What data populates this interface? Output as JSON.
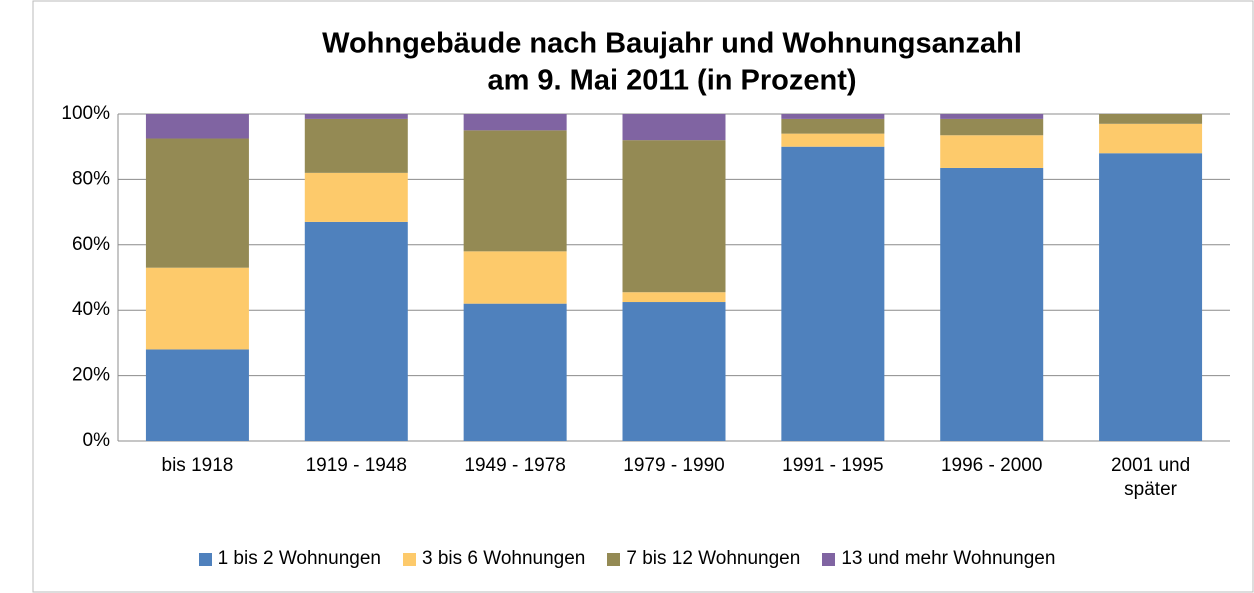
{
  "chart_data": {
    "type": "stacked_bar",
    "title": "Wohngebäude nach Baujahr und Wohnungsanzahl",
    "subtitle": "am 9. Mai 2011 (in Prozent)",
    "categories": [
      "bis 1918",
      "1919 - 1948",
      "1949 - 1978",
      "1979 - 1990",
      "1991 - 1995",
      "1996 - 2000",
      "2001 und später"
    ],
    "series": [
      {
        "name": "1 bis 2 Wohnungen",
        "color": "#4f81bd",
        "values": [
          28,
          67,
          42,
          42.5,
          90,
          83.5,
          88
        ]
      },
      {
        "name": "3 bis 6 Wohnungen",
        "color": "#fdca6b",
        "values": [
          25,
          15,
          16,
          3,
          4,
          10,
          9
        ]
      },
      {
        "name": "7 bis 12 Wohnungen",
        "color": "#948a54",
        "values": [
          39.5,
          16.5,
          37,
          46.5,
          4.5,
          5,
          3
        ]
      },
      {
        "name": "13 und mehr Wohnungen",
        "color": "#8064a2",
        "values": [
          7.5,
          1.5,
          5,
          8,
          1.5,
          1.5,
          0
        ]
      }
    ],
    "ylim": [
      0,
      100
    ],
    "yticks": [
      {
        "value": 0,
        "label": "0%"
      },
      {
        "value": 20,
        "label": "20%"
      },
      {
        "value": 40,
        "label": "40%"
      },
      {
        "value": 60,
        "label": "60%"
      },
      {
        "value": 80,
        "label": "80%"
      },
      {
        "value": 100,
        "label": "100%"
      }
    ],
    "grid": true,
    "legend": "bottom"
  }
}
